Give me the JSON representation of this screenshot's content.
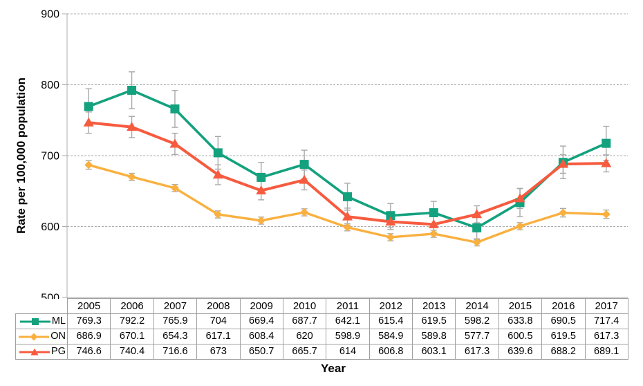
{
  "chart_data": {
    "type": "line",
    "title": "",
    "xlabel": "Year",
    "ylabel": "Rate per 100,000 population",
    "x": [
      2005,
      2006,
      2007,
      2008,
      2009,
      2010,
      2011,
      2012,
      2013,
      2014,
      2015,
      2016,
      2017
    ],
    "ylim": [
      500,
      900
    ],
    "yticks": [
      500,
      600,
      700,
      800,
      900
    ],
    "grid": "horizontal-dashed",
    "legend_position": "table-left-of-rows",
    "error_bars": true,
    "series": [
      {
        "name": "ML",
        "marker": "square",
        "color": "#13A17E",
        "line_width": 3.6,
        "values": [
          769.3,
          792.2,
          765.9,
          704,
          669.4,
          687.7,
          642.1,
          615.4,
          619.5,
          598.2,
          633.8,
          690.5,
          717.4
        ],
        "errors": [
          25,
          26,
          26,
          23,
          21,
          20,
          19,
          17,
          16,
          17,
          20,
          23,
          24
        ]
      },
      {
        "name": "ON",
        "marker": "diamond",
        "color": "#F9B03F",
        "line_width": 3.4,
        "values": [
          686.9,
          670.1,
          654.3,
          617.1,
          608.4,
          620,
          598.9,
          584.9,
          589.8,
          577.7,
          600.5,
          619.5,
          617.3
        ],
        "errors": [
          6,
          5,
          5,
          5,
          5,
          5,
          5,
          5,
          5,
          5,
          5,
          6,
          6
        ]
      },
      {
        "name": "PG",
        "marker": "triangle",
        "color": "#F65B3F",
        "line_width": 4,
        "values": [
          746.6,
          740.4,
          716.6,
          673,
          650.7,
          665.7,
          614,
          606.8,
          603.1,
          617.3,
          639.6,
          688.2,
          689.1
        ],
        "errors": [
          15,
          15,
          15,
          14,
          13,
          14,
          12,
          11,
          11,
          12,
          14,
          13,
          12
        ]
      }
    ],
    "colors": {
      "grid": "#ABABAB",
      "axis": "#ABABAB",
      "error_bar": "#A8A8A8",
      "table_border": "#A0A0A0",
      "text": "#000000",
      "background": "#FFFFFF"
    }
  }
}
